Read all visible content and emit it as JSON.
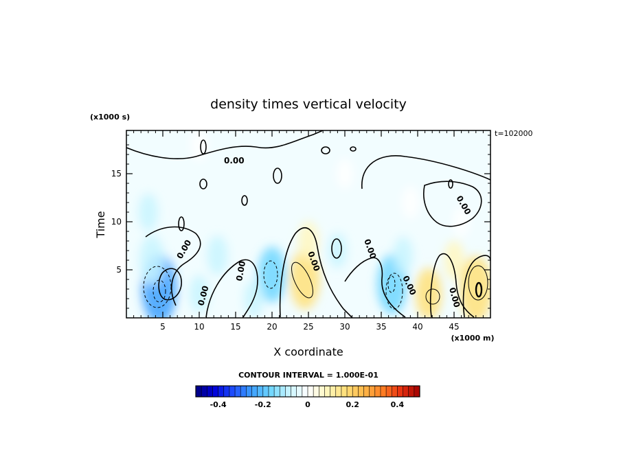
{
  "chart_data": {
    "type": "heatmap",
    "title": "density times vertical velocity",
    "xlabel": "X coordinate",
    "ylabel": "Time",
    "x_unit": "(x1000 m)",
    "y_unit": "(x1000 s)",
    "time_stamp": "t=102000",
    "xlim": [
      0,
      50
    ],
    "ylim": [
      0,
      19.5
    ],
    "x_ticks": [
      "5",
      "10",
      "15",
      "20",
      "25",
      "30",
      "35",
      "40",
      "45"
    ],
    "y_ticks": [
      "5",
      "10",
      "15"
    ],
    "contour_interval_text": "CONTOUR INTERVAL = 1.000E-01",
    "contour_label": "0.00",
    "colorbar": {
      "range": [
        -0.5,
        0.5
      ],
      "ticks": [
        "-0.4",
        "-0.2",
        "0",
        "0.2",
        "0.4"
      ],
      "colors": [
        "#00007f",
        "#0000d8",
        "#1f4fff",
        "#3da0ff",
        "#6fd6ff",
        "#c8f4ff",
        "#ffffff",
        "#fff7c0",
        "#ffe07a",
        "#ffb84a",
        "#ff8024",
        "#e83010",
        "#a00000"
      ]
    },
    "features": [
      {
        "x": 4.5,
        "y": 3.0,
        "value": -0.22
      },
      {
        "x": 3.5,
        "y": 6.0,
        "value": -0.12
      },
      {
        "x": 3.0,
        "y": 11.0,
        "value": -0.06
      },
      {
        "x": 10.0,
        "y": 2.5,
        "value": -0.06
      },
      {
        "x": 12.5,
        "y": 6.5,
        "value": -0.07
      },
      {
        "x": 20.0,
        "y": 4.5,
        "value": -0.15
      },
      {
        "x": 17.5,
        "y": 2.0,
        "value": -0.06
      },
      {
        "x": 24.5,
        "y": 4.0,
        "value": 0.17
      },
      {
        "x": 25.0,
        "y": 8.0,
        "value": 0.07
      },
      {
        "x": 29.0,
        "y": 7.0,
        "value": -0.05
      },
      {
        "x": 36.5,
        "y": 3.5,
        "value": -0.17
      },
      {
        "x": 38.0,
        "y": 6.5,
        "value": -0.06
      },
      {
        "x": 41.5,
        "y": 2.5,
        "value": 0.13
      },
      {
        "x": 39.0,
        "y": 12.0,
        "value": 0.04
      },
      {
        "x": 46.0,
        "y": 10.0,
        "value": 0.03
      },
      {
        "x": 48.0,
        "y": 3.0,
        "value": 0.2
      },
      {
        "x": 45.0,
        "y": 6.0,
        "value": 0.07
      },
      {
        "x": 10.0,
        "y": 18.0,
        "value": -0.04
      },
      {
        "x": 30.0,
        "y": 15.0,
        "value": -0.03
      }
    ]
  }
}
